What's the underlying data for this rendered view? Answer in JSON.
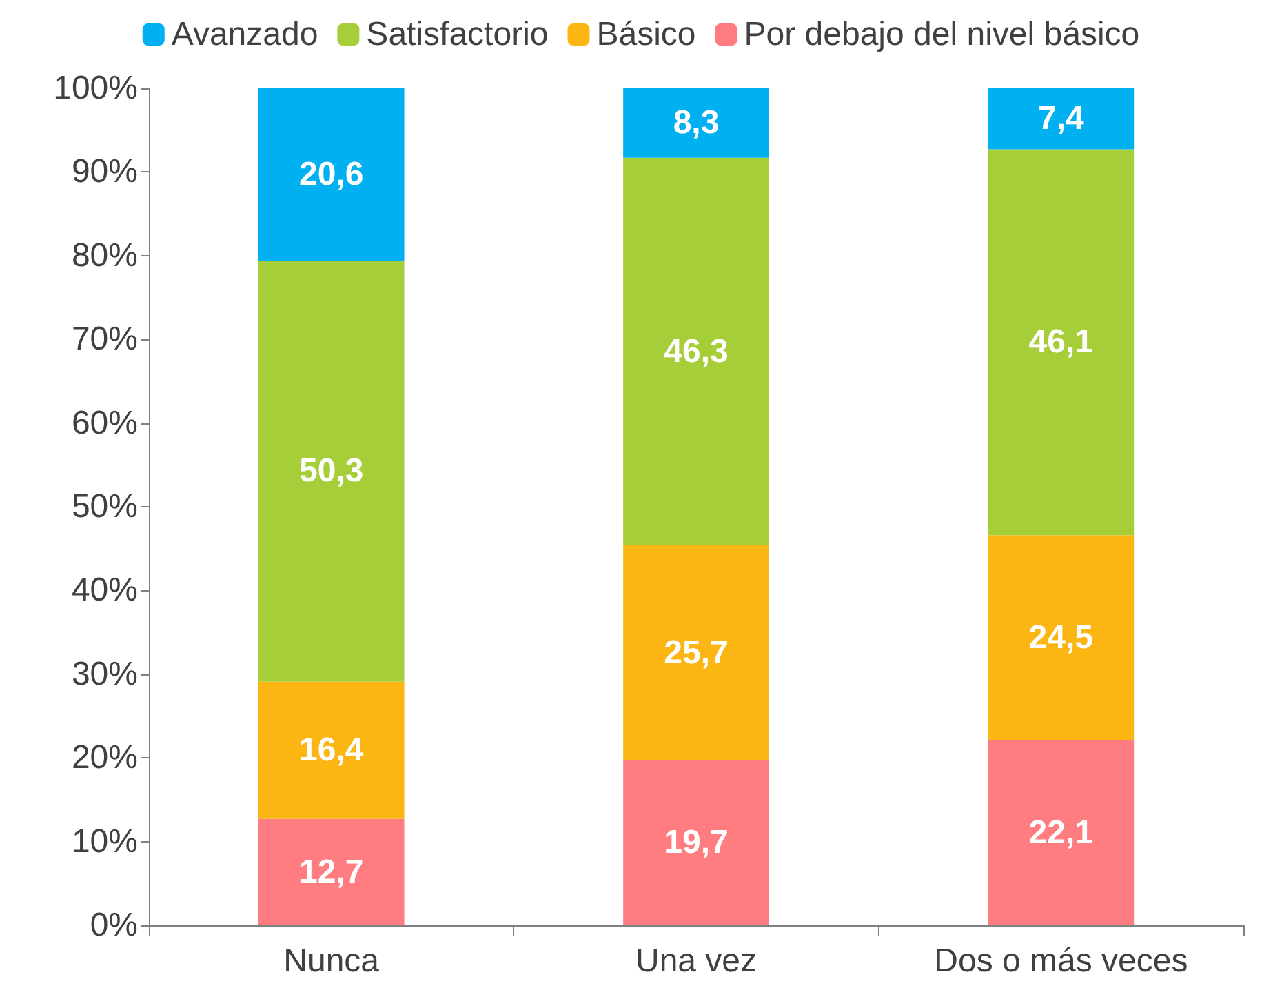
{
  "chart_data": {
    "type": "bar",
    "stacked": true,
    "categories": [
      "Nunca",
      "Una vez",
      "Dos o más veces"
    ],
    "series": [
      {
        "name": "Por debajo del nivel básico",
        "color": "#ff7c80",
        "values": [
          12.7,
          19.7,
          22.1
        ],
        "value_labels": [
          "12,7",
          "19,7",
          "22,1"
        ]
      },
      {
        "name": "Básico",
        "color": "#fbb614",
        "values": [
          16.4,
          25.7,
          24.5
        ],
        "value_labels": [
          "16,4",
          "25,7",
          "24,5"
        ]
      },
      {
        "name": "Satisfactorio",
        "color": "#a6ce39",
        "values": [
          50.3,
          46.3,
          46.1
        ],
        "value_labels": [
          "50,3",
          "46,3",
          "46,1"
        ]
      },
      {
        "name": "Avanzado",
        "color": "#00b0f0",
        "values": [
          20.6,
          8.3,
          7.4
        ],
        "value_labels": [
          "20,6",
          "8,3",
          "7,4"
        ]
      }
    ],
    "ylim": [
      0,
      100
    ],
    "yticks": [
      {
        "value": 0,
        "label": "0%"
      },
      {
        "value": 10,
        "label": "10%"
      },
      {
        "value": 20,
        "label": "20%"
      },
      {
        "value": 30,
        "label": "30%"
      },
      {
        "value": 40,
        "label": "40%"
      },
      {
        "value": 50,
        "label": "50%"
      },
      {
        "value": 60,
        "label": "60%"
      },
      {
        "value": 70,
        "label": "70%"
      },
      {
        "value": 80,
        "label": "80%"
      },
      {
        "value": 90,
        "label": "90%"
      },
      {
        "value": 100,
        "label": "100%"
      }
    ],
    "grid": false,
    "legend": "top"
  }
}
